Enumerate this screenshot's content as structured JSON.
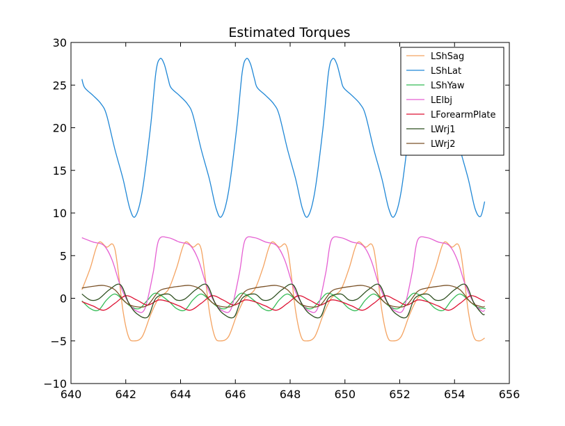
{
  "chart_data": {
    "type": "line",
    "title": "Estimated Torques",
    "xlabel": "",
    "ylabel": "",
    "xlim": [
      640,
      656
    ],
    "ylim": [
      -10,
      30
    ],
    "xticks": [
      640,
      642,
      644,
      646,
      648,
      650,
      652,
      654,
      656
    ],
    "yticks": [
      -10,
      -5,
      0,
      5,
      10,
      15,
      20,
      25,
      30
    ],
    "grid": false,
    "legend_position": "top-right",
    "x_range": [
      640.4,
      655.1
    ],
    "period": 3.15,
    "series": [
      {
        "name": "LShSag",
        "color": "#f4a361",
        "x": [
          640.4,
          640.7,
          641.0,
          641.3,
          641.6,
          641.9,
          642.1,
          642.3,
          642.6,
          642.9,
          643.2,
          643.55
        ],
        "y": [
          1.0,
          3.5,
          6.5,
          6.0,
          5.8,
          -1.5,
          -4.5,
          -5.0,
          -4.5,
          -2.0,
          0.0,
          1.0
        ]
      },
      {
        "name": "LShLat",
        "color": "#1f87d6",
        "x": [
          640.4,
          640.5,
          640.8,
          641.1,
          641.3,
          641.6,
          641.9,
          642.15,
          642.35,
          642.6,
          642.9,
          643.1,
          643.25,
          643.4,
          643.55
        ],
        "y": [
          25.7,
          24.7,
          23.8,
          22.8,
          21.5,
          17.5,
          14.0,
          10.5,
          9.6,
          12.5,
          20.0,
          26.5,
          28.1,
          27.5,
          25.7
        ]
      },
      {
        "name": "LShYaw",
        "color": "#33bb55",
        "x": [
          640.4,
          640.7,
          641.0,
          641.3,
          641.6,
          641.9,
          642.2,
          642.5,
          642.8,
          643.1,
          643.55
        ],
        "y": [
          -0.3,
          -1.2,
          -1.4,
          -0.2,
          0.5,
          -0.2,
          -1.0,
          -1.2,
          -0.2,
          0.6,
          -0.3
        ]
      },
      {
        "name": "LElbj",
        "color": "#e55fd2",
        "x": [
          640.4,
          640.8,
          641.2,
          641.5,
          641.8,
          642.1,
          642.4,
          642.7,
          643.0,
          643.2,
          643.55
        ],
        "y": [
          7.1,
          6.6,
          6.2,
          4.5,
          1.5,
          -0.5,
          -1.5,
          -1.2,
          3.0,
          6.8,
          7.1
        ]
      },
      {
        "name": "LForearmPlate",
        "color": "#dd1133",
        "x": [
          640.4,
          640.8,
          641.2,
          641.6,
          642.0,
          642.4,
          642.8,
          643.2,
          643.55
        ],
        "y": [
          -0.4,
          -0.9,
          -1.4,
          -0.6,
          0.3,
          -0.2,
          -0.8,
          -0.2,
          -0.4
        ]
      },
      {
        "name": "LWrj1",
        "color": "#2b4d1d",
        "x": [
          640.4,
          640.7,
          641.0,
          641.4,
          641.8,
          642.1,
          642.4,
          642.8,
          643.1,
          643.55
        ],
        "y": [
          0.5,
          -0.2,
          -0.1,
          1.0,
          1.6,
          -0.5,
          -1.8,
          -2.2,
          0.0,
          0.5
        ]
      },
      {
        "name": "LWrj2",
        "color": "#7a5228",
        "x": [
          640.4,
          640.8,
          641.2,
          641.6,
          642.0,
          642.4,
          642.8,
          643.2,
          643.55
        ],
        "y": [
          1.2,
          1.4,
          1.5,
          1.0,
          -0.5,
          -1.0,
          -0.8,
          0.8,
          1.2
        ]
      }
    ]
  }
}
